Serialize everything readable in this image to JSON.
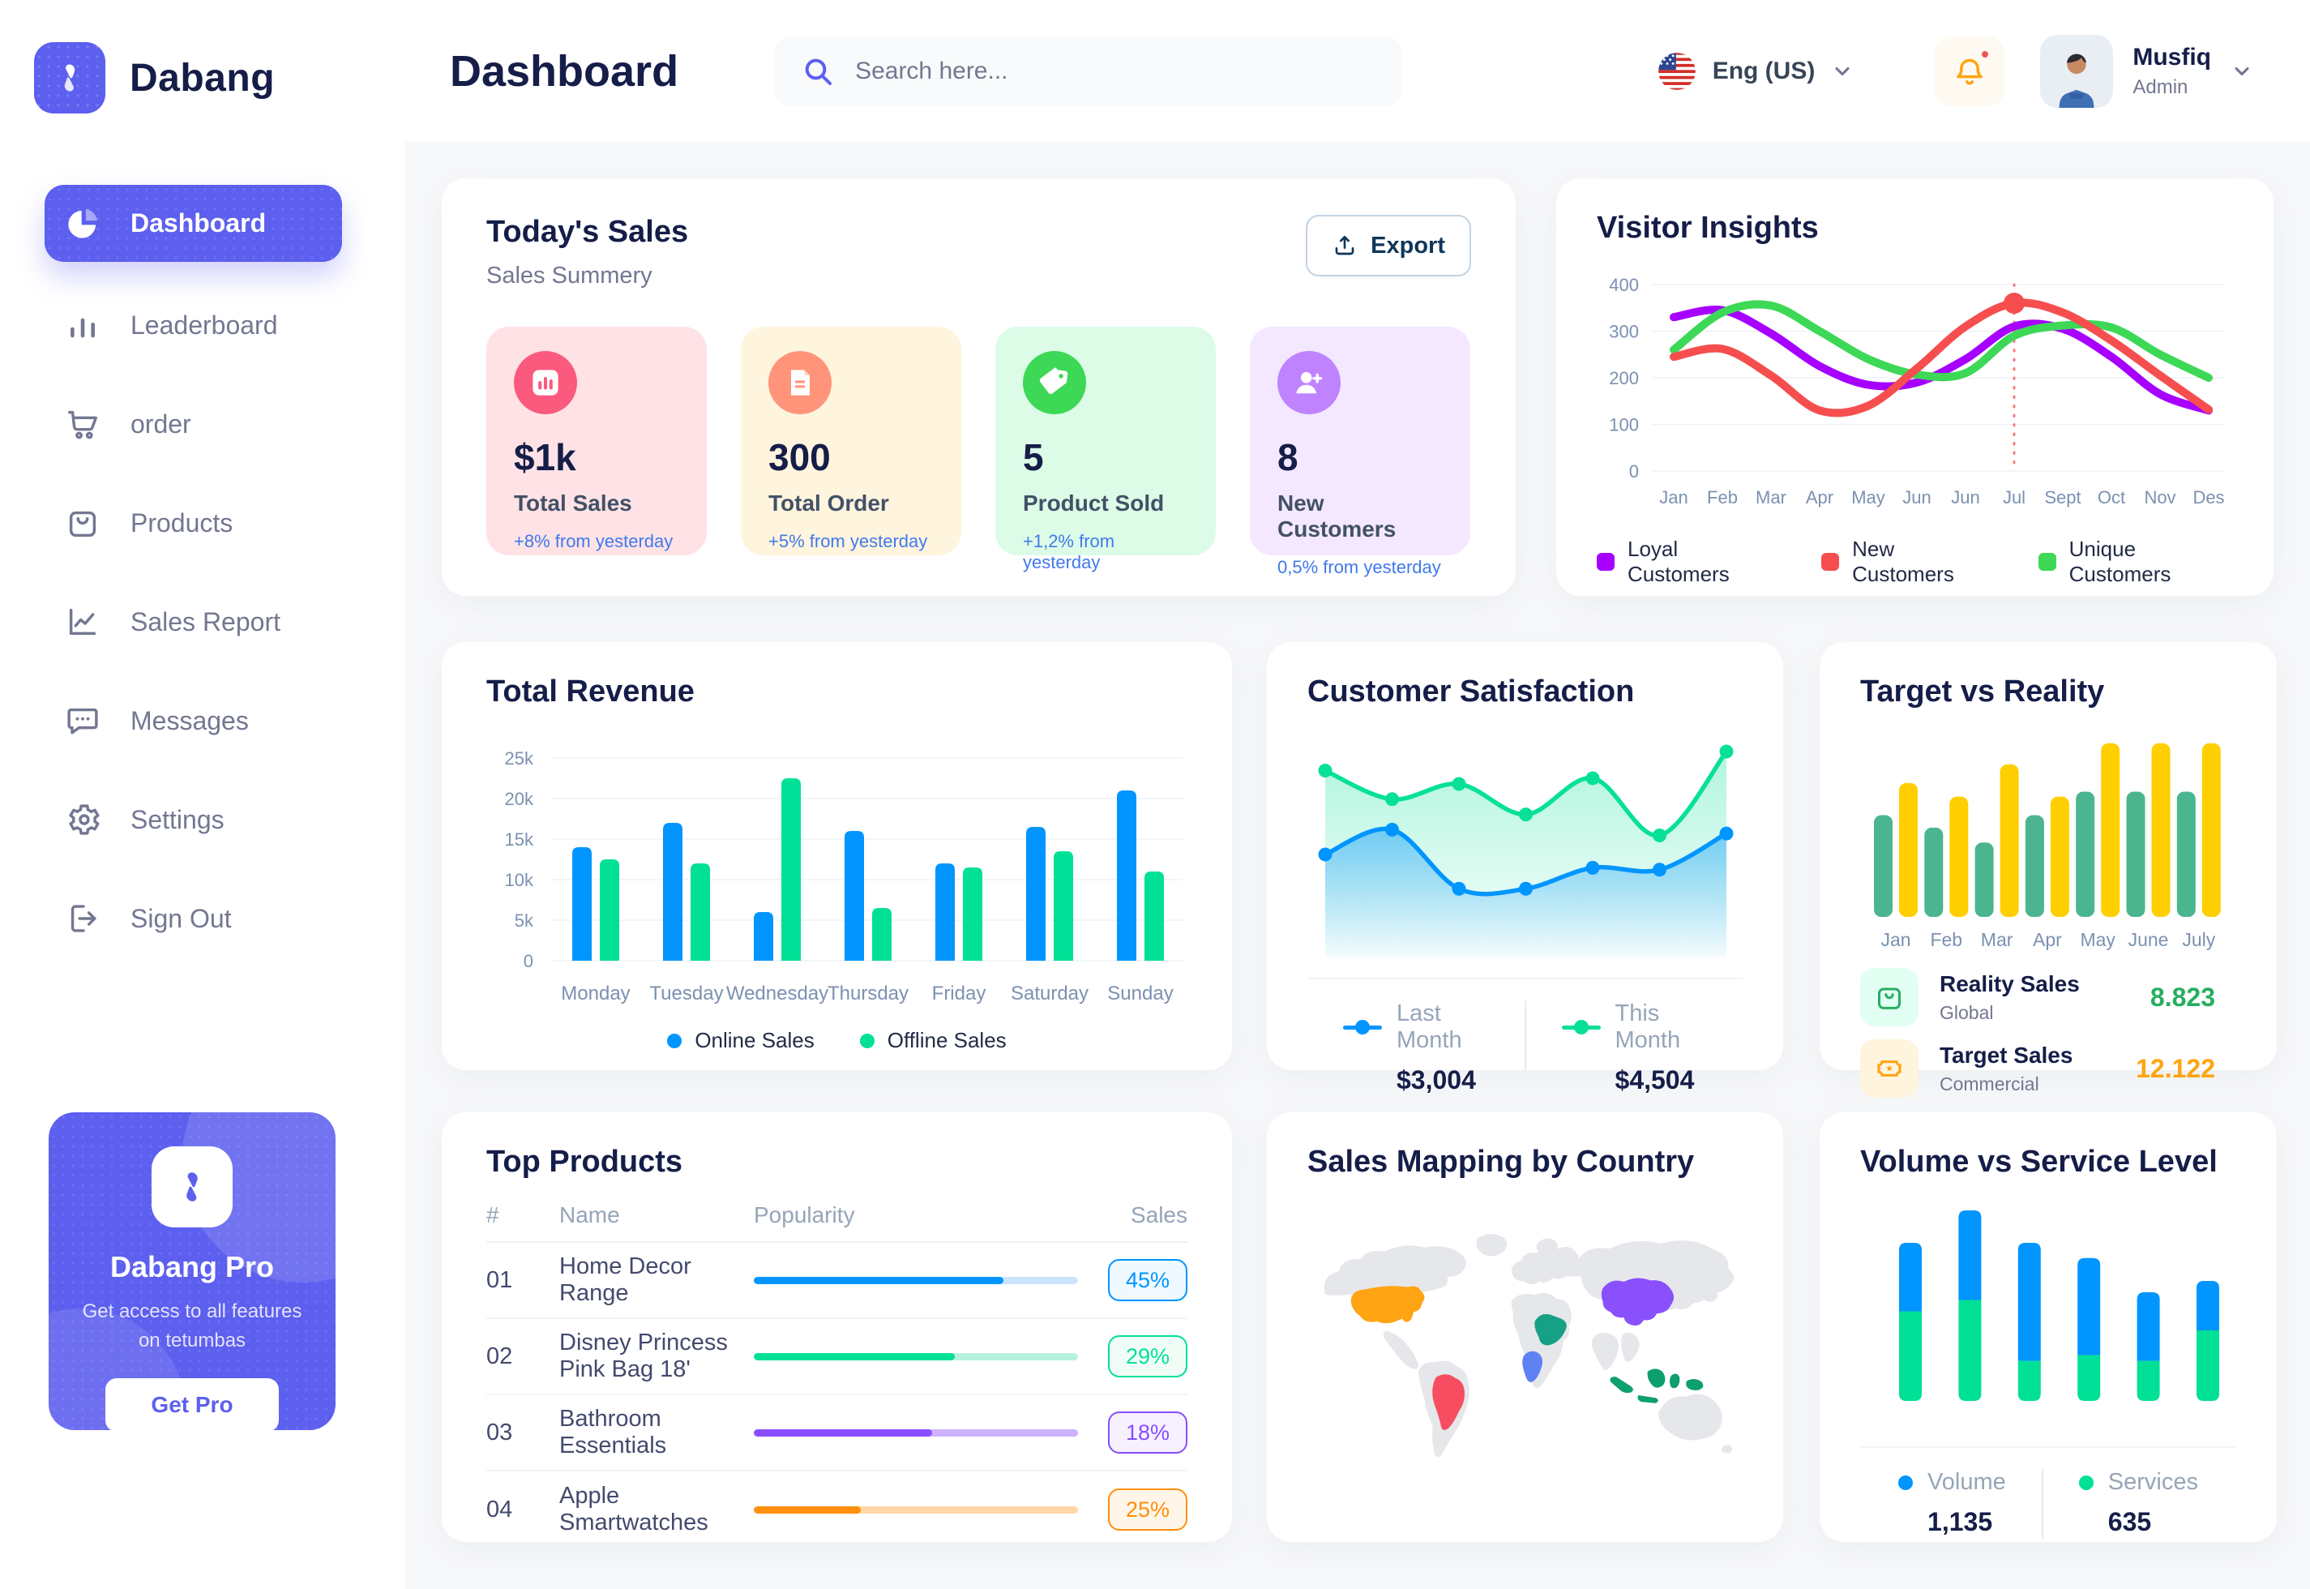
{
  "colors": {
    "accent": "#5D5FEF",
    "title": "#151D48",
    "muted": "#737791",
    "axis": "#7B91B0",
    "delta_blue": "#4079ED",
    "export_text": "#0F3659"
  },
  "header": {
    "title": "Dashboard",
    "search_placeholder": "Search here...",
    "language": "Eng (US)",
    "user_name": "Musfiq",
    "user_role": "Admin"
  },
  "sidebar": {
    "brand": "Dabang",
    "items": [
      {
        "id": "dashboard",
        "label": "Dashboard",
        "icon": "pie",
        "active": true
      },
      {
        "id": "leaderboard",
        "label": "Leaderboard",
        "icon": "bars",
        "active": false
      },
      {
        "id": "order",
        "label": "order",
        "icon": "cart",
        "active": false
      },
      {
        "id": "products",
        "label": "Products",
        "icon": "bag",
        "active": false
      },
      {
        "id": "sales-report",
        "label": "Sales Report",
        "icon": "chart",
        "active": false
      },
      {
        "id": "messages",
        "label": "Messages",
        "icon": "chat",
        "active": false
      },
      {
        "id": "settings",
        "label": "Settings",
        "icon": "gear",
        "active": false
      },
      {
        "id": "sign-out",
        "label": "Sign Out",
        "icon": "signout",
        "active": false
      }
    ],
    "pro": {
      "title": "Dabang Pro",
      "description": "Get access to all features on tetumbas",
      "button": "Get Pro"
    }
  },
  "todays_sales": {
    "title": "Today's Sales",
    "subtitle": "Sales Summery",
    "export_label": "Export",
    "cards": [
      {
        "value": "$1k",
        "label": "Total Sales",
        "delta": "+8% from yesterday",
        "bg": "#FFE2E5",
        "icon_bg": "#FA5A7D",
        "icon": "stat-sales"
      },
      {
        "value": "300",
        "label": "Total Order",
        "delta": "+5% from yesterday",
        "bg": "#FFF4DE",
        "icon_bg": "#FF947A",
        "icon": "stat-order"
      },
      {
        "value": "5",
        "label": "Product Sold",
        "delta": "+1,2% from yesterday",
        "bg": "#DCFCE7",
        "icon_bg": "#3CD856",
        "icon": "stat-sold"
      },
      {
        "value": "8",
        "label": "New Customers",
        "delta": "0,5% from yesterday",
        "bg": "#F3E8FF",
        "icon_bg": "#BF83FF",
        "icon": "stat-customers"
      }
    ]
  },
  "top_products": {
    "title": "Top Products",
    "headers": [
      "#",
      "Name",
      "Popularity",
      "Sales"
    ],
    "rows": [
      {
        "num": "01",
        "name": "Home Decor Range",
        "popularity": 77,
        "color": "#0095FF",
        "track": "#CDE4FE",
        "badge_bg": "#F0F9FF",
        "sales": "45%"
      },
      {
        "num": "02",
        "name": "Disney Princess Pink Bag 18'",
        "popularity": 62,
        "color": "#00E096",
        "track": "#B6F2DC",
        "badge_bg": "#F0FDF6",
        "sales": "29%"
      },
      {
        "num": "03",
        "name": "Bathroom Essentials",
        "popularity": 55,
        "color": "#884DFF",
        "track": "#CDB2FF",
        "badge_bg": "#F7F1FF",
        "sales": "18%"
      },
      {
        "num": "04",
        "name": "Apple Smartwatches",
        "popularity": 33,
        "color": "#FF8F0D",
        "track": "#FFD8A6",
        "badge_bg": "#FFF6E9",
        "sales": "25%"
      }
    ]
  },
  "chart_data": [
    {
      "id": "visitor_insights",
      "type": "line",
      "title": "Visitor Insights",
      "x_labels": [
        "Jan",
        "Feb",
        "Mar",
        "Apr",
        "May",
        "Jun",
        "Jun",
        "Jul",
        "Sept",
        "Oct",
        "Nov",
        "Des"
      ],
      "y_ticks": [
        0,
        100,
        200,
        300,
        400
      ],
      "ylim": [
        0,
        400
      ],
      "grid": true,
      "legend_position": "bottom",
      "series": [
        {
          "name": "Loyal Customers",
          "color": "#A700FF",
          "values": [
            330,
            345,
            295,
            225,
            185,
            190,
            240,
            310,
            305,
            245,
            165,
            130
          ]
        },
        {
          "name": "New Customers",
          "color": "#F64E4E",
          "values": [
            245,
            262,
            205,
            130,
            140,
            220,
            310,
            360,
            340,
            280,
            205,
            132
          ]
        },
        {
          "name": "Unique Customers",
          "color": "#3CD856",
          "values": [
            260,
            340,
            355,
            300,
            240,
            207,
            210,
            290,
            312,
            308,
            250,
            200
          ]
        }
      ],
      "highlight": {
        "series": 1,
        "index": 7,
        "x_label": "Jul",
        "value": 360
      }
    },
    {
      "id": "total_revenue",
      "type": "bar",
      "title": "Total Revenue",
      "categories": [
        "Monday",
        "Tuesday",
        "Wednesday",
        "Thursday",
        "Friday",
        "Saturday",
        "Sunday"
      ],
      "y_tick_labels": [
        "0",
        "5k",
        "10k",
        "15k",
        "20k",
        "25k"
      ],
      "ylim": [
        0,
        25000
      ],
      "grid": true,
      "legend_position": "bottom",
      "series": [
        {
          "name": "Online Sales",
          "color": "#0095FF",
          "values": [
            14000,
            17000,
            6000,
            16000,
            12000,
            16500,
            21000
          ]
        },
        {
          "name": "Offline Sales",
          "color": "#00E096",
          "values": [
            12500,
            12000,
            22500,
            6500,
            11500,
            13500,
            11000
          ]
        }
      ]
    },
    {
      "id": "customer_satisfaction",
      "type": "area",
      "title": "Customer Satisfaction",
      "ylim": [
        0,
        100
      ],
      "grid": false,
      "legend_position": "bottom",
      "series": [
        {
          "name": "Last Month",
          "total": "$3,004",
          "color": "#0095FF",
          "values": [
            43,
            56,
            25,
            25,
            36,
            35,
            54
          ]
        },
        {
          "name": "This Month",
          "total": "$4,504",
          "color": "#07E098",
          "values": [
            87,
            72,
            80,
            64,
            83,
            53,
            97
          ]
        }
      ]
    },
    {
      "id": "target_vs_reality",
      "type": "bar",
      "title": "Target vs Reality",
      "categories": [
        "Jan",
        "Feb",
        "Mar",
        "Apr",
        "May",
        "June",
        "July"
      ],
      "ylim": [
        0,
        14
      ],
      "grid": false,
      "legend_position": "bottom",
      "series": [
        {
          "name": "Reality Sales",
          "subtitle": "Global",
          "color": "#4AB58E",
          "icon": "bag-mini",
          "icon_bg": "#E2FFF3",
          "icon_color": "#27AE60",
          "value_label": "8.823",
          "value_color": "#27AE60",
          "values": [
            8.2,
            7.2,
            6.0,
            8.2,
            10.1,
            10.1,
            10.1
          ]
        },
        {
          "name": "Target Sales",
          "subtitle": "Commercial",
          "color": "#FFCF00",
          "icon": "ticket",
          "icon_bg": "#FFF4DE",
          "icon_color": "#FFA412",
          "value_label": "12.122",
          "value_color": "#FFA412",
          "values": [
            10.8,
            9.7,
            12.3,
            9.7,
            14,
            14,
            14
          ]
        }
      ]
    },
    {
      "id": "sales_mapping",
      "type": "map",
      "title": "Sales Mapping by Country",
      "land_color": "#E6E7EB",
      "countries": [
        {
          "name": "United States",
          "color": "#FFA412"
        },
        {
          "name": "Brazil",
          "color": "#F64E60"
        },
        {
          "name": "DR Congo",
          "color": "#5E81F4"
        },
        {
          "name": "Saudi Arabia",
          "color": "#16A086"
        },
        {
          "name": "China",
          "color": "#8950FC"
        },
        {
          "name": "Indonesia",
          "color": "#0E9F6E"
        }
      ]
    },
    {
      "id": "volume_vs_service",
      "type": "stacked-bar",
      "title": "Volume vs Service Level",
      "grid": false,
      "legend_position": "bottom",
      "series": [
        {
          "name": "Volume",
          "total": "1,135",
          "color": "#0095FF",
          "values": [
            3.6,
            4.7,
            6.2,
            5.1,
            3.6,
            2.6
          ]
        },
        {
          "name": "Services",
          "total": "635",
          "color": "#00E096",
          "values": [
            4.7,
            5.3,
            2.1,
            2.4,
            2.1,
            3.7
          ]
        }
      ]
    }
  ]
}
